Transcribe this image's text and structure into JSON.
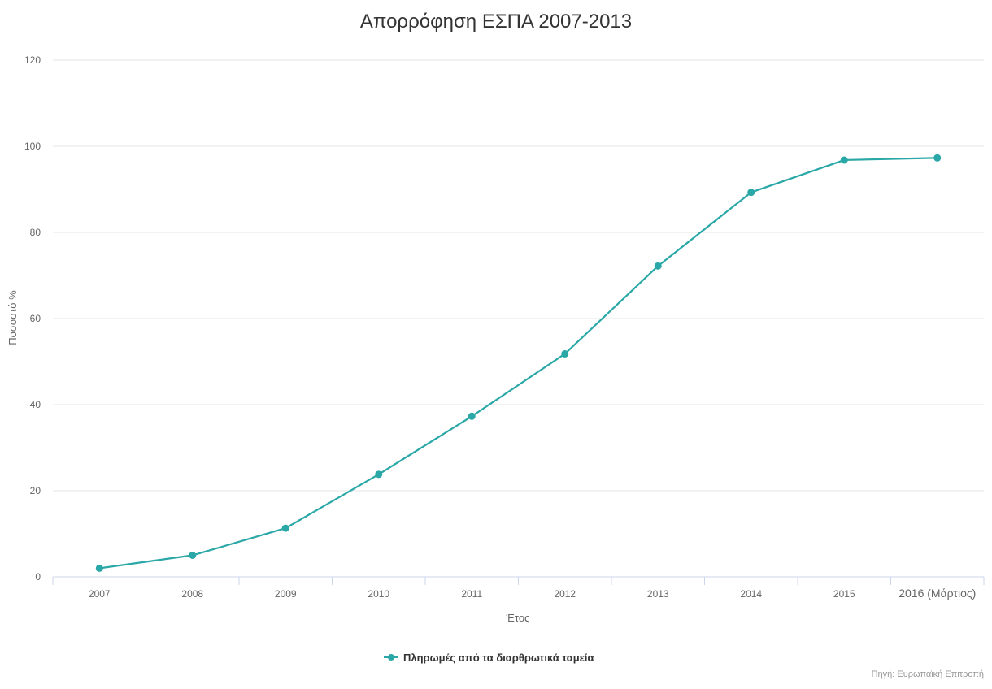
{
  "chart_data": {
    "type": "line",
    "title": "Απορρόφηση ΕΣΠΑ 2007-2013",
    "xlabel": "Έτος",
    "ylabel": "Ποσοστό %",
    "categories": [
      "2007",
      "2008",
      "2009",
      "2010",
      "2011",
      "2012",
      "2013",
      "2014",
      "2015",
      "2016 (Μάρτιος)"
    ],
    "series": [
      {
        "name": "Πληρωμές από τα διαρθρωτικά ταμεία",
        "color": "#2aa7a7",
        "values": [
          2,
          5,
          11.3,
          23.8,
          37.3,
          51.8,
          72.2,
          89.3,
          96.8,
          97.3
        ]
      }
    ],
    "ylim": [
      0,
      120
    ],
    "yticks": [
      0,
      20,
      40,
      60,
      80,
      100,
      120
    ],
    "grid": true,
    "legend": "bottom-center",
    "credit": "Πηγή: Ευρωπαϊκή Επιτροπή"
  }
}
